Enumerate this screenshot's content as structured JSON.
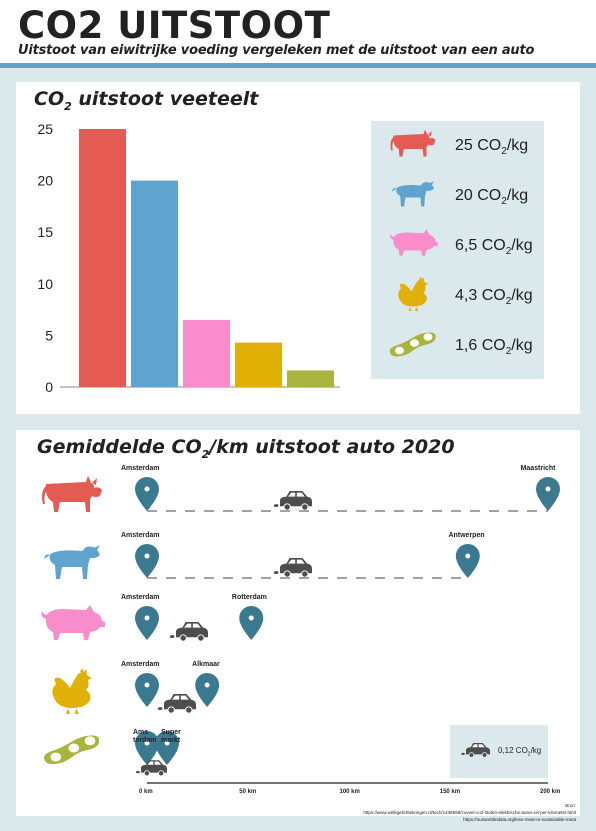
{
  "header": {
    "title": "CO2 UITSTOOT",
    "subtitle": "Uitstoot van eiwitrijke voeding vergeleken met de uitstoot van een auto"
  },
  "colors": {
    "beef": "#e35b52",
    "lamb": "#5fa3ce",
    "pork": "#f98cca",
    "chicken": "#e1b007",
    "beans": "#a9b43e",
    "pin": "#3b7990",
    "car": "#4d4d4d"
  },
  "chart_data": [
    {
      "type": "bar",
      "title_main": "CO",
      "title_sub": "2",
      "title_rest": " uitstoot veeteelt",
      "categories": [
        "rund",
        "lam",
        "varken",
        "kip",
        "bonen"
      ],
      "values": [
        25,
        20,
        6.5,
        4.3,
        1.6
      ],
      "yticks": [
        "0",
        "5",
        "10",
        "15",
        "20",
        "25"
      ],
      "ylim": [
        0,
        25
      ],
      "legend": [
        {
          "icon": "cow-icon",
          "pre": "25 CO",
          "sub": "2",
          "post": "/kg"
        },
        {
          "icon": "lamb-icon",
          "pre": "20 CO",
          "sub": "2",
          "post": "/kg"
        },
        {
          "icon": "pig-icon",
          "pre": "6,5 CO",
          "sub": "2",
          "post": "/kg"
        },
        {
          "icon": "chicken-icon",
          "pre": "4,3 CO",
          "sub": "2",
          "post": "/kg"
        },
        {
          "icon": "beans-icon",
          "pre": "1,6 CO",
          "sub": "2",
          "post": "/kg"
        }
      ]
    },
    {
      "type": "bar",
      "title_pre": "Gemiddelde CO",
      "title_sub": "2",
      "title_post": "/km uitstoot auto 2020",
      "x_unit": "km",
      "xticks": [
        "0 km",
        "50 km",
        "100 km",
        "150 km",
        "200 km"
      ],
      "xlim": [
        0,
        200
      ],
      "rows": [
        {
          "icon": "cow-icon",
          "start": "Amsterdam",
          "end": "Maastricht",
          "km": 200
        },
        {
          "icon": "lamb-icon",
          "start": "Amsterdam",
          "end": "Antwerpen",
          "km": 160
        },
        {
          "icon": "pig-icon",
          "start": "Amsterdam",
          "end": "Rotterdam",
          "km": 52
        },
        {
          "icon": "chicken-icon",
          "start": "Amsterdam",
          "end": "Alkmaar",
          "km": 30
        },
        {
          "icon": "beans-icon",
          "start_a": "Ams",
          "start_b": "terdam",
          "end_a": "Super",
          "end_b": "markt",
          "km": 10
        }
      ],
      "car_legend": {
        "pre": "0,12 CO",
        "sub": "2",
        "post": "/kg"
      }
    }
  ],
  "source": {
    "label": "Bron:",
    "line1": "https://www.welkgelichtekringen.nl/tech/1438659/zoveel-co2-stoten-elektrische-autos-uit-per-kilometer.html",
    "line2": "https://ourworldindata.org/less-meat-or-sustainable-meat"
  }
}
